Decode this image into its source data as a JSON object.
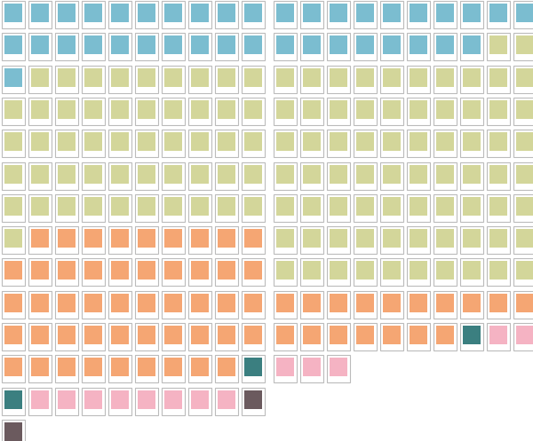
{
  "chart_data": [
    {
      "type": "waffle",
      "values": [
        21,
        50,
        48,
        2,
        8,
        2
      ],
      "colors": [
        "#7bbdd0",
        "#d3d69a",
        "#f5a673",
        "#3b7f80",
        "#f5b3c3",
        "#6b5a5e"
      ],
      "tick_labels": false
    },
    {
      "type": "waffle",
      "values": [
        18,
        72,
        17,
        1,
        5
      ],
      "colors": [
        "#7bbdd0",
        "#d3d69a",
        "#f5a673",
        "#3b7f80",
        "#f5b3c3"
      ],
      "tick_labels": false
    }
  ]
}
